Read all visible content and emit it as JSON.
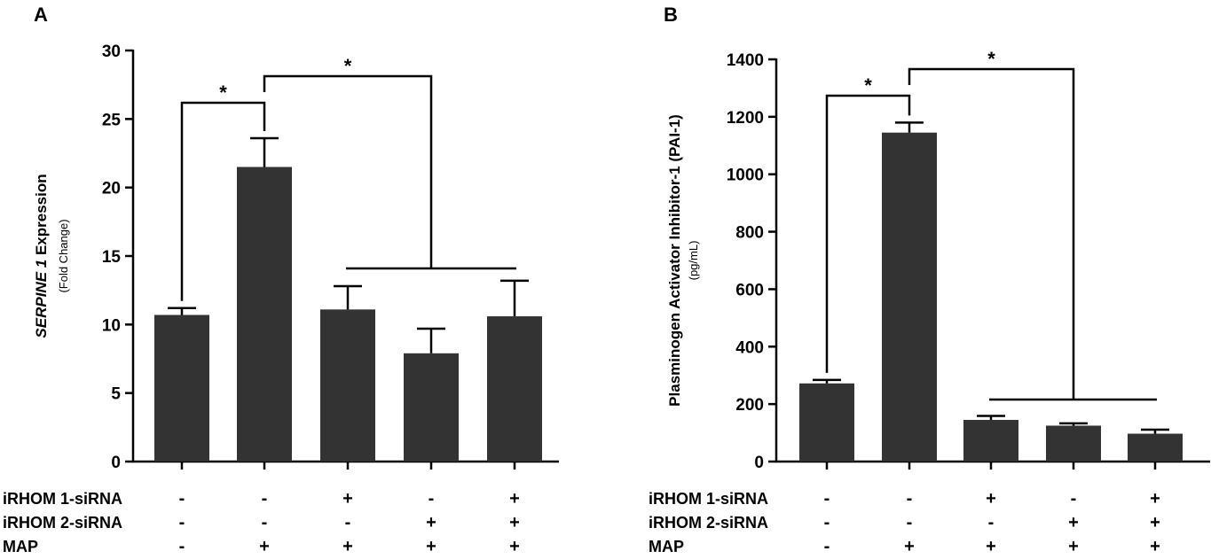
{
  "chart_data": [
    {
      "type": "bar",
      "panel": "A",
      "ylabel": "SERPINE 1 Expression",
      "ylabel_italic_part": "SERPINE 1",
      "ylabel_rest": " Expression",
      "ylabel_sub": "(Fold Change)",
      "ylim": [
        0,
        30
      ],
      "yticks": [
        0,
        5,
        10,
        15,
        20,
        25,
        30
      ],
      "values": [
        10.7,
        21.5,
        11.1,
        7.9,
        10.6
      ],
      "errors": [
        0.5,
        2.1,
        1.7,
        1.8,
        2.6
      ],
      "significance": [
        {
          "from": 0,
          "to": 1,
          "label": "*"
        },
        {
          "from": 1,
          "to": "2-4",
          "label": "*"
        }
      ],
      "bar_color": "#333333"
    },
    {
      "type": "bar",
      "panel": "B",
      "ylabel": "Plasminogen Activator Inhibitor-1 (PAI-1)",
      "ylabel_sub": "(pg/mL)",
      "ylim": [
        0,
        1400
      ],
      "yticks": [
        0,
        200,
        400,
        600,
        800,
        1000,
        1200,
        1400
      ],
      "values": [
        272,
        1145,
        145,
        125,
        97
      ],
      "errors": [
        12,
        35,
        14,
        8,
        14
      ],
      "significance": [
        {
          "from": 0,
          "to": 1,
          "label": "*"
        },
        {
          "from": 1,
          "to": "2-4",
          "label": "*"
        }
      ],
      "bar_color": "#333333"
    }
  ],
  "conditions": {
    "row_labels": [
      "iRHOM 1-siRNA",
      "iRHOM 2-siRNA",
      "MAP"
    ],
    "rows": [
      [
        "-",
        "-",
        "+",
        "-",
        "+"
      ],
      [
        "-",
        "-",
        "-",
        "+",
        "+"
      ],
      [
        "-",
        "+",
        "+",
        "+",
        "+"
      ]
    ]
  }
}
